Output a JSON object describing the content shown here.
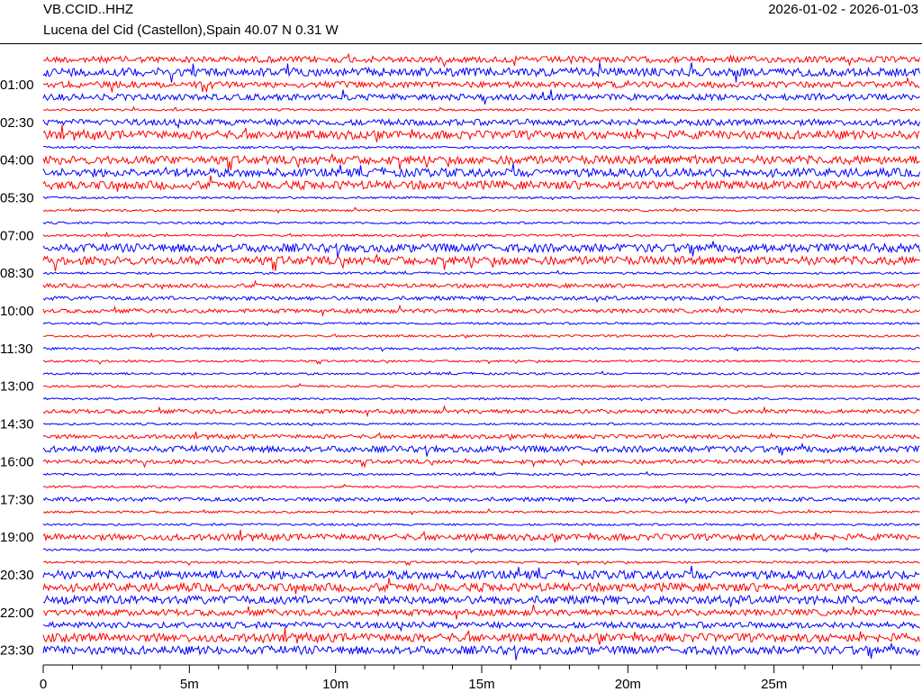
{
  "header": {
    "station": "VB.CCID..HHZ",
    "location": "Lucena del Cid (Castellon),Spain  40.07 N 0.31 W",
    "date_range": "2026-01-02 - 2026-01-03"
  },
  "chart_data": {
    "type": "line",
    "title": "",
    "xlabel": "",
    "ylabel": "",
    "xlim": [
      0,
      30
    ],
    "x_ticks": [
      {
        "value": 0,
        "label": "0"
      },
      {
        "value": 5,
        "label": "5m"
      },
      {
        "value": 10,
        "label": "10m"
      },
      {
        "value": 15,
        "label": "15m"
      },
      {
        "value": 20,
        "label": "20m"
      },
      {
        "value": 25,
        "label": "25m"
      }
    ],
    "y_ticks": [
      {
        "row": 2,
        "label": "01:00"
      },
      {
        "row": 5,
        "label": "02:30"
      },
      {
        "row": 8,
        "label": "04:00"
      },
      {
        "row": 11,
        "label": "05:30"
      },
      {
        "row": 14,
        "label": "07:00"
      },
      {
        "row": 17,
        "label": "08:30"
      },
      {
        "row": 20,
        "label": "10:00"
      },
      {
        "row": 23,
        "label": "11:30"
      },
      {
        "row": 26,
        "label": "13:00"
      },
      {
        "row": 29,
        "label": "14:30"
      },
      {
        "row": 32,
        "label": "16:00"
      },
      {
        "row": 35,
        "label": "17:30"
      },
      {
        "row": 38,
        "label": "19:00"
      },
      {
        "row": 41,
        "label": "20:30"
      },
      {
        "row": 44,
        "label": "22:00"
      },
      {
        "row": 47,
        "label": "23:30"
      }
    ],
    "trace_colors": [
      "#ff0000",
      "#0000ff"
    ],
    "trace_count": 48,
    "trace_amplitude_levels": [
      3,
      4,
      3,
      3,
      1,
      3,
      4,
      1,
      4,
      4,
      4,
      1,
      1,
      1,
      1,
      4,
      4,
      1,
      2,
      2,
      2,
      1,
      1,
      1,
      1,
      1,
      1,
      1,
      2,
      1,
      2,
      3,
      2,
      1,
      1,
      2,
      1,
      1,
      3,
      1,
      1,
      4,
      4,
      4,
      3,
      3,
      4,
      4
    ]
  }
}
